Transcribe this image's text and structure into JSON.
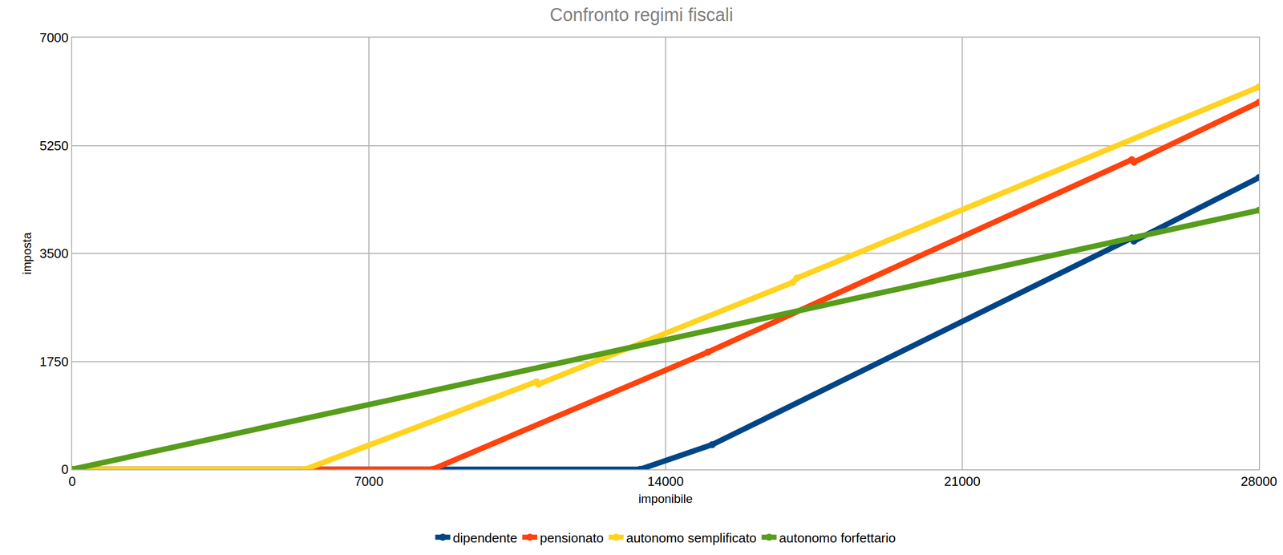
{
  "chart_data": {
    "type": "line",
    "title": "Confronto regimi fiscali",
    "x_label": "imponibile",
    "y_label": "imposta",
    "xlim": [
      0,
      28000
    ],
    "xticks": [
      0,
      7000,
      14000,
      21000,
      28000
    ],
    "ylim": [
      0,
      7000
    ],
    "yticks": [
      0,
      1750,
      3500,
      5250,
      7000
    ],
    "grid": true,
    "legend": "bottom",
    "marker": "circle",
    "series": [
      {
        "name": "dipendente",
        "color": "#004586",
        "x": [
          0,
          13400,
          15100,
          25000,
          25050,
          28000
        ],
        "values": [
          0,
          0,
          400,
          3750,
          3700,
          4730
        ]
      },
      {
        "name": "pensionato",
        "color": "#ff420e",
        "x": [
          0,
          8500,
          15000,
          25000,
          25050,
          28000
        ],
        "values": [
          0,
          0,
          1900,
          5020,
          4980,
          5950
        ]
      },
      {
        "name": "autonomo semplificato",
        "color": "#ffd320",
        "x": [
          0,
          5500,
          10950,
          11000,
          17000,
          17100,
          28000
        ],
        "values": [
          0,
          0,
          1420,
          1380,
          3030,
          3100,
          6200
        ]
      },
      {
        "name": "autonomo forfettario",
        "color": "#579d1c",
        "x": [
          0,
          28000
        ],
        "values": [
          0,
          4200
        ]
      }
    ]
  }
}
